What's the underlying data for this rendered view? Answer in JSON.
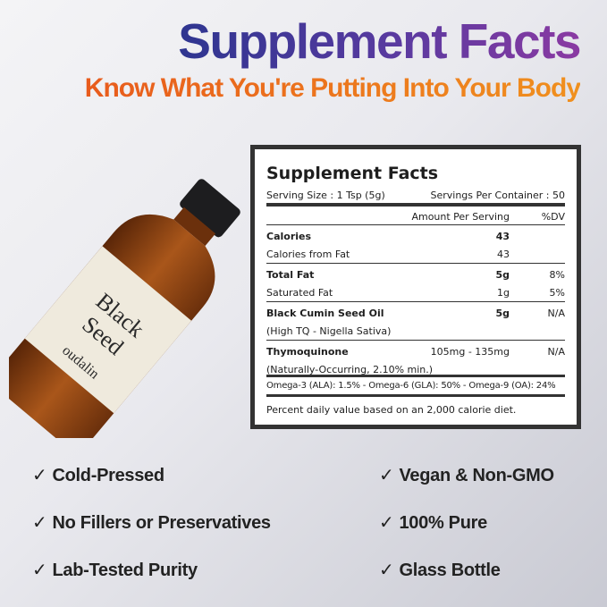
{
  "header": {
    "title": "Supplement Facts",
    "subtitle": "Know What You're Putting Into Your Body"
  },
  "product": {
    "brand": "oudalin",
    "name": "Black Seed",
    "colors": {
      "amber": "#8a4312",
      "cap": "#1d1d1f",
      "label": "#efeadd"
    }
  },
  "panel": {
    "title": "Supplement Facts",
    "serving_size": "Serving Size : 1 Tsp (5g)",
    "servings_per_container": "Servings Per Container : 50",
    "amount_header": "Amount Per Serving",
    "dv_header": "%DV",
    "rows": [
      {
        "label": "Calories",
        "amount": "43",
        "dv": "",
        "bold": true
      },
      {
        "label": "Calories from Fat",
        "amount": "43",
        "dv": ""
      },
      {
        "label": "Total Fat",
        "amount": "5g",
        "dv": "8%",
        "bold": true
      },
      {
        "label": "Saturated Fat",
        "amount": "1g",
        "dv": "5%"
      },
      {
        "label": "Black Cumin Seed Oil",
        "amount": "5g",
        "dv": "N/A",
        "bold": true
      },
      {
        "label": "(High TQ - Nigella Sativa)",
        "amount": "",
        "dv": ""
      },
      {
        "label": "Thymoquinone",
        "amount": "105mg - 135mg",
        "dv": "N/A",
        "bold": true
      },
      {
        "label": "(Naturally-Occurring, 2.10% min.)",
        "amount": "",
        "dv": ""
      }
    ],
    "omega": "Omega-3 (ALA): 1.5% - Omega-6 (GLA): 50% - Omega-9 (OA): 24%",
    "footnote": "Percent daily value based on an 2,000 calorie diet."
  },
  "features": {
    "check": "✓",
    "left": [
      "Cold-Pressed",
      "No Fillers or Preservatives",
      "Lab-Tested Purity"
    ],
    "right": [
      "Vegan & Non-GMO",
      "100% Pure",
      "Glass Bottle"
    ]
  }
}
